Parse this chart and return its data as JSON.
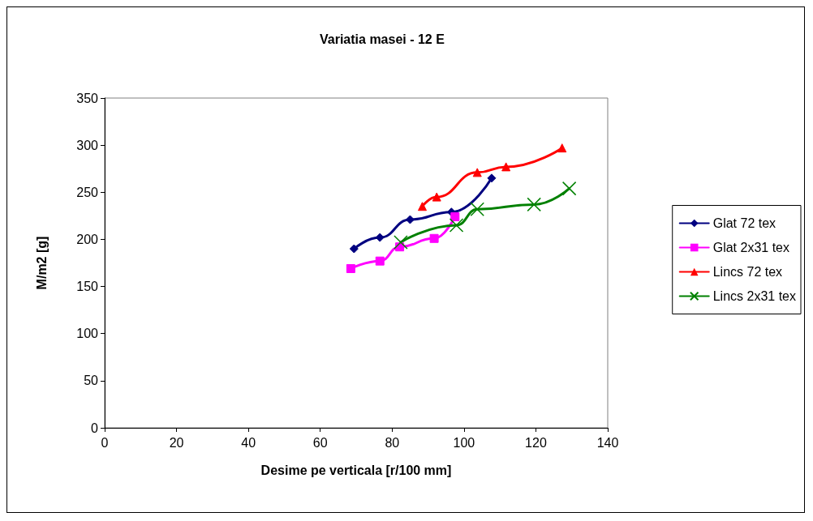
{
  "chart_data": {
    "type": "line",
    "title": "Variatia masei - 12 E",
    "xlabel": "Desime pe verticala [r/100 mm]",
    "ylabel": "M/m2 [g]",
    "xlim": [
      0,
      140
    ],
    "xticks": [
      0,
      20,
      40,
      60,
      80,
      100,
      120,
      140
    ],
    "ylim": [
      0,
      350
    ],
    "yticks": [
      0,
      50,
      100,
      150,
      200,
      250,
      300,
      350
    ],
    "grid": false,
    "legend": "right",
    "series": [
      {
        "name": "Glat 72 tex",
        "color": "#000080",
        "marker": "diamond",
        "x": [
          69.4,
          76.6,
          85,
          96.5,
          107.7
        ],
        "values": [
          190,
          202,
          221,
          229,
          265
        ]
      },
      {
        "name": "Glat 2x31 tex",
        "color": "#ff00ff",
        "marker": "square",
        "x": [
          68.5,
          76.6,
          82.1,
          91.7,
          97.5
        ],
        "values": [
          169,
          177,
          192,
          201,
          224
        ]
      },
      {
        "name": "Lincs 72 tex",
        "color": "#ff0000",
        "marker": "triangle",
        "x": [
          88.4,
          92.4,
          103.7,
          111.7,
          127.3
        ],
        "values": [
          235,
          245,
          271,
          277,
          297
        ]
      },
      {
        "name": "Lincs 2x31 tex",
        "color": "#008000",
        "marker": "cross",
        "x": [
          82.4,
          97.9,
          103.7,
          119.5,
          129.3
        ],
        "values": [
          197,
          215,
          232,
          237,
          254
        ]
      }
    ]
  }
}
